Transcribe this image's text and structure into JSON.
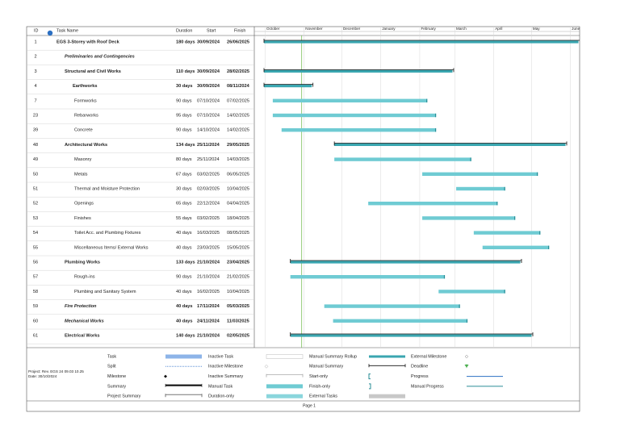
{
  "table": {
    "headers": [
      "ID",
      "Task Name",
      "Duration",
      "Start",
      "Finish"
    ],
    "rows": [
      {
        "id": "1",
        "name": "EGS 3-Storey with Roof Deck",
        "duration": "180 days",
        "start": "30/09/2024",
        "finish": "26/06/2025",
        "style": "bold",
        "level": 0,
        "summary": true
      },
      {
        "id": "2",
        "name": "Preliminaries and Contingencies",
        "style": "bold-italic",
        "level": 1
      },
      {
        "id": "3",
        "name": "Structural and Civil Works",
        "duration": "110 days",
        "start": "30/09/2024",
        "finish": "28/02/2025",
        "style": "bold",
        "level": 1,
        "summary": true
      },
      {
        "id": "4",
        "name": "Earthworks",
        "duration": "30 days",
        "start": "30/09/2024",
        "finish": "08/11/2024",
        "style": "bold",
        "level": 2,
        "summary": true
      },
      {
        "id": "7",
        "name": "Formworks",
        "duration": "90 days",
        "start": "07/10/2024",
        "finish": "07/02/2025",
        "style": "normal",
        "level": 2
      },
      {
        "id": "23",
        "name": "Rebarworks",
        "duration": "95 days",
        "start": "07/10/2024",
        "finish": "14/02/2025",
        "style": "normal",
        "level": 2
      },
      {
        "id": "39",
        "name": "Concrete",
        "duration": "90 days",
        "start": "14/10/2024",
        "finish": "14/02/2025",
        "style": "normal",
        "level": 2
      },
      {
        "id": "48",
        "name": "Architectural Works",
        "duration": "134 days",
        "start": "25/11/2024",
        "finish": "29/05/2025",
        "style": "bold",
        "level": 1,
        "summary": true
      },
      {
        "id": "49",
        "name": "Masonry",
        "duration": "80 days",
        "start": "25/11/2024",
        "finish": "14/03/2025",
        "style": "normal",
        "level": 2
      },
      {
        "id": "50",
        "name": "Metals",
        "duration": "67 days",
        "start": "03/02/2025",
        "finish": "06/05/2025",
        "style": "normal",
        "level": 2
      },
      {
        "id": "51",
        "name": "Thermal and Moisture Protection",
        "duration": "30 days",
        "start": "02/03/2025",
        "finish": "10/04/2025",
        "style": "normal",
        "level": 2
      },
      {
        "id": "52",
        "name": "Openings",
        "duration": "65 days",
        "start": "22/12/2024",
        "finish": "04/04/2025",
        "style": "normal",
        "level": 2
      },
      {
        "id": "53",
        "name": "Finishes",
        "duration": "55 days",
        "start": "03/02/2025",
        "finish": "18/04/2025",
        "style": "normal",
        "level": 2
      },
      {
        "id": "54",
        "name": "Toilet Acc. and Plumbing Fixtures",
        "duration": "40 days",
        "start": "16/03/2025",
        "finish": "08/05/2025",
        "style": "normal",
        "level": 2
      },
      {
        "id": "55",
        "name": "Miscellaneous Items/ External Works",
        "duration": "40 days",
        "start": "23/03/2025",
        "finish": "15/05/2025",
        "style": "normal",
        "level": 2
      },
      {
        "id": "56",
        "name": "Plumbing Works",
        "duration": "133 days",
        "start": "21/10/2024",
        "finish": "23/04/2025",
        "style": "bold",
        "level": 1,
        "summary": true
      },
      {
        "id": "57",
        "name": "Rough-ins",
        "duration": "90 days",
        "start": "21/10/2024",
        "finish": "21/02/2025",
        "style": "normal",
        "level": 2
      },
      {
        "id": "58",
        "name": "Plumbing and Sanitary System",
        "duration": "40 days",
        "start": "16/02/2025",
        "finish": "10/04/2025",
        "style": "normal",
        "level": 2
      },
      {
        "id": "59",
        "name": "Fire Protection",
        "duration": "40 days",
        "start": "17/11/2024",
        "finish": "05/03/2025",
        "style": "bold-italic",
        "level": 1
      },
      {
        "id": "60",
        "name": "Mechanical Works",
        "duration": "40 days",
        "start": "24/11/2024",
        "finish": "11/03/2025",
        "style": "bold-italic",
        "level": 1
      },
      {
        "id": "61",
        "name": "Electrical Works",
        "duration": "140 days",
        "start": "21/10/2024",
        "finish": "02/05/2025",
        "style": "bold",
        "level": 1,
        "summary": true
      }
    ]
  },
  "timescale": {
    "months": [
      "October",
      "November",
      "December",
      "January",
      "February",
      "March",
      "April",
      "May",
      "June"
    ]
  },
  "legend": {
    "columns": [
      [
        "Task",
        "Split",
        "Milestone",
        "Summary",
        "Project Summary"
      ],
      [
        "Inactive Task",
        "Inactive Milestone",
        "Inactive Summary",
        "Manual Task",
        "Duration-only"
      ],
      [
        "Manual Summary Rollup",
        "Manual Summary",
        "Start-only",
        "Finish-only",
        "External Tasks"
      ],
      [
        "External Milestone",
        "Deadline",
        "Progress",
        "Manual Progress"
      ]
    ]
  },
  "footer": {
    "project": "Project: Rev. EGS 24 09.03 10.25",
    "date": "Date: 30/10/2024",
    "page": "Page 1"
  }
}
